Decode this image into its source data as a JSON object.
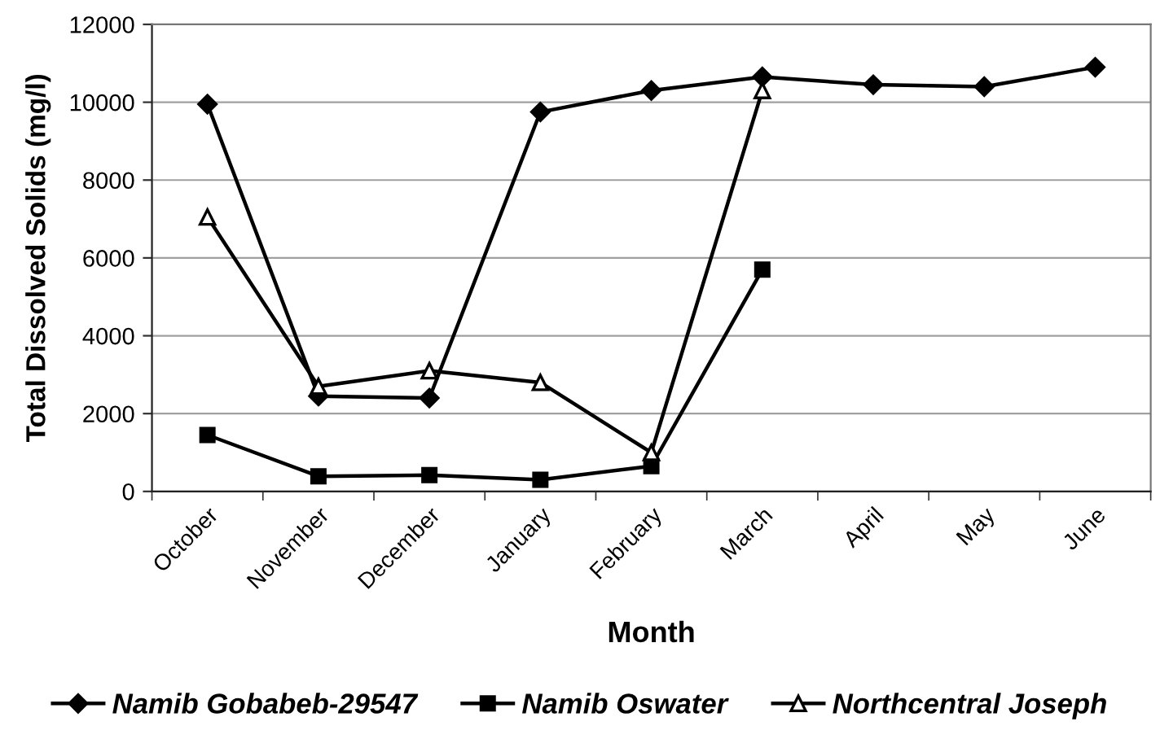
{
  "chart_data": {
    "type": "line",
    "xlabel": "Month",
    "ylabel": "Total Dissolved Solids (mg/l)",
    "categories": [
      "October",
      "November",
      "December",
      "January",
      "February",
      "March",
      "April",
      "May",
      "June"
    ],
    "series": [
      {
        "name": "Namib Gobabeb-29547",
        "color": "#000000",
        "marker": "diamond",
        "values": [
          9950,
          2450,
          2400,
          9750,
          10300,
          10650,
          10450,
          10400,
          10900
        ]
      },
      {
        "name": "Namib Oswater",
        "color": "#000000",
        "marker": "square",
        "values": [
          1450,
          390,
          420,
          300,
          650,
          5700,
          null,
          null,
          null
        ]
      },
      {
        "name": "Northcentral Joseph",
        "color": "#000000",
        "marker": "triangle",
        "values": [
          7050,
          2700,
          3100,
          2800,
          1000,
          10300,
          null,
          null,
          null
        ]
      }
    ],
    "ylim": [
      0,
      12000
    ],
    "yticks": [
      0,
      2000,
      4000,
      6000,
      8000,
      10000,
      12000
    ],
    "grid": "y",
    "legend": "bottom",
    "line_style": "solid"
  }
}
